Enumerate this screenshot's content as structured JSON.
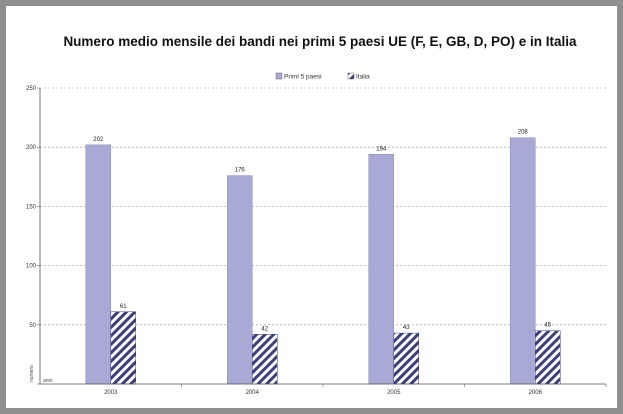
{
  "chart_data": {
    "type": "bar",
    "title": "Numero medio mensile dei bandi nei primi 5 paesi UE (F, E, GB, D, PO) e in Italia",
    "categories": [
      "2003",
      "2004",
      "2005",
      "2006"
    ],
    "series": [
      {
        "name": "Primi 5 paesi",
        "values": [
          202,
          176,
          194,
          208
        ],
        "color": "#a9a9d6"
      },
      {
        "name": "Italia",
        "values": [
          61,
          42,
          43,
          45
        ],
        "color": "#3d3f7a",
        "pattern": "diagonal-hatch"
      }
    ],
    "yticks": [
      0,
      50,
      100,
      150,
      200,
      250
    ],
    "ylim": [
      0,
      250
    ],
    "ylabel": "numero",
    "zero_tick_label": "anni",
    "grid": true,
    "legend_position": "top-center"
  }
}
